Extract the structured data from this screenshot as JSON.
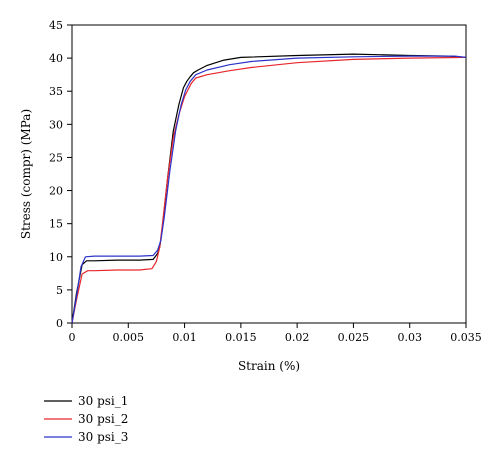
{
  "chart_data": {
    "type": "line",
    "title": "",
    "xlabel": "Strain (%)",
    "ylabel": "Stress (compr) (MPa)",
    "xlim": [
      0,
      0.035
    ],
    "ylim": [
      0,
      45
    ],
    "xticks": [
      0,
      0.005,
      0.01,
      0.015,
      0.02,
      0.025,
      0.03,
      0.035
    ],
    "xtick_labels": [
      "0",
      "0.005",
      "0.01",
      "0.015",
      "0.02",
      "0.025",
      "0.03",
      "0.035"
    ],
    "yticks": [
      0,
      5,
      10,
      15,
      20,
      25,
      30,
      35,
      40,
      45
    ],
    "ytick_labels": [
      "0",
      "5",
      "10",
      "15",
      "20",
      "25",
      "30",
      "35",
      "40",
      "45"
    ],
    "grid": false,
    "legend_position": "bottom-left, below plot",
    "series": [
      {
        "name": "30 psi_1",
        "color": "#000000",
        "x": [
          0,
          0.0004,
          0.0009,
          0.0013,
          0.002,
          0.004,
          0.006,
          0.0072,
          0.0076,
          0.0078,
          0.008,
          0.0085,
          0.009,
          0.0095,
          0.0099,
          0.0102,
          0.0105,
          0.0108,
          0.0112,
          0.012,
          0.0135,
          0.015,
          0.02,
          0.025,
          0.03,
          0.0335,
          0.035
        ],
        "y": [
          0,
          4.5,
          8.8,
          9.4,
          9.4,
          9.5,
          9.5,
          9.6,
          10.5,
          11.5,
          14,
          22,
          29,
          33,
          35.5,
          36.5,
          37.2,
          37.8,
          38.2,
          38.9,
          39.7,
          40.1,
          40.4,
          40.6,
          40.4,
          40.3,
          40.1
        ]
      },
      {
        "name": "30 psi_2",
        "color": "#e8262a",
        "x": [
          0,
          0.0004,
          0.0009,
          0.0014,
          0.002,
          0.004,
          0.006,
          0.0071,
          0.0075,
          0.0078,
          0.008,
          0.0085,
          0.009,
          0.0095,
          0.01,
          0.0103,
          0.0106,
          0.011,
          0.012,
          0.014,
          0.016,
          0.02,
          0.025,
          0.03,
          0.035
        ],
        "y": [
          0,
          3.5,
          7.4,
          7.9,
          7.9,
          8.0,
          8.0,
          8.2,
          9.3,
          11.5,
          14.5,
          22,
          28,
          31.5,
          34.2,
          35.2,
          36.2,
          37,
          37.5,
          38.1,
          38.6,
          39.3,
          39.8,
          40.0,
          40.1
        ]
      },
      {
        "name": "30 psi_3",
        "color": "#2c33c9",
        "x": [
          0,
          0.0004,
          0.0008,
          0.0012,
          0.002,
          0.004,
          0.006,
          0.0072,
          0.0076,
          0.0079,
          0.0082,
          0.0087,
          0.0092,
          0.0097,
          0.0101,
          0.0105,
          0.011,
          0.012,
          0.014,
          0.016,
          0.02,
          0.025,
          0.03,
          0.034,
          0.035
        ],
        "y": [
          0,
          4,
          8.5,
          10.0,
          10.1,
          10.1,
          10.1,
          10.2,
          11,
          12.5,
          16,
          23,
          29,
          33,
          35.2,
          36.5,
          37.5,
          38.2,
          39,
          39.5,
          40,
          40.2,
          40.3,
          40.3,
          40.1
        ]
      }
    ]
  }
}
